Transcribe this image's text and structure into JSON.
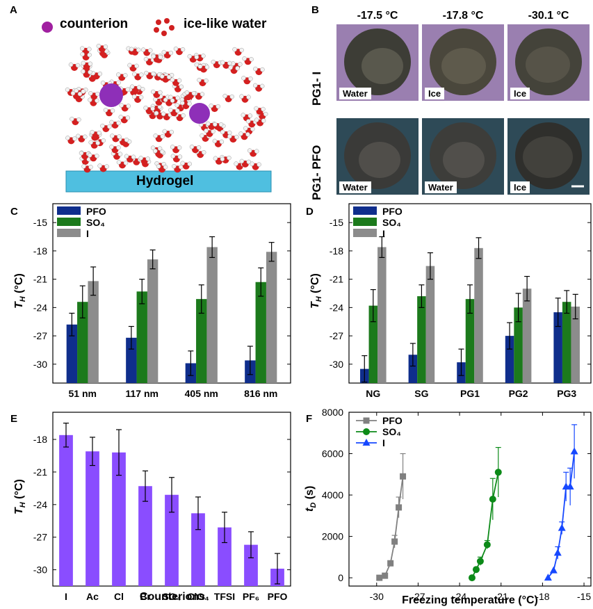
{
  "panel_a": {
    "letter": "A",
    "legend_counterion": "counterion",
    "legend_water": "ice-like water",
    "substrate_label": "Hydrogel"
  },
  "panel_b": {
    "letter": "B",
    "temperatures": [
      "-17.5 °C",
      "-17.8 °C",
      "-30.1 °C"
    ],
    "rows": [
      {
        "label": "PG1- I",
        "states": [
          "Water",
          "Ice",
          "Ice"
        ],
        "color": "#9a7fb0"
      },
      {
        "label": "PG1- PFO",
        "states": [
          "Water",
          "Water",
          "Ice"
        ],
        "color": "#2e4a57"
      }
    ]
  },
  "chart_data": [
    {
      "panel": "C",
      "type": "bar",
      "categories": [
        "51 nm",
        "117 nm",
        "405 nm",
        "816 nm"
      ],
      "ylabel": "T_H (°C)",
      "ylim": [
        -32,
        -13
      ],
      "yticks": [
        -30,
        -27,
        -24,
        -21,
        -18,
        -15
      ],
      "series": [
        {
          "name": "PFO",
          "color": "#0f2e8c",
          "values": [
            -25.8,
            -27.2,
            -29.9,
            -29.6
          ],
          "errors": [
            1.2,
            1.2,
            1.3,
            1.5
          ]
        },
        {
          "name": "SO₄",
          "color": "#1c7a1c",
          "values": [
            -23.4,
            -22.3,
            -23.1,
            -21.3
          ],
          "errors": [
            1.7,
            1.3,
            1.5,
            1.5
          ]
        },
        {
          "name": "I",
          "color": "#8c8c8c",
          "values": [
            -21.2,
            -18.9,
            -17.6,
            -18.1
          ],
          "errors": [
            1.5,
            1.0,
            1.1,
            1.0
          ]
        }
      ]
    },
    {
      "panel": "D",
      "type": "bar",
      "categories": [
        "NG",
        "SG",
        "PG1",
        "PG2",
        "PG3"
      ],
      "ylabel": "T_H (°C)",
      "ylim": [
        -32,
        -13
      ],
      "yticks": [
        -30,
        -27,
        -24,
        -21,
        -18,
        -15
      ],
      "series": [
        {
          "name": "PFO",
          "color": "#0f2e8c",
          "values": [
            -30.5,
            -29.0,
            -29.8,
            -27.0,
            -24.5
          ],
          "errors": [
            1.4,
            1.2,
            1.4,
            1.4,
            1.5
          ]
        },
        {
          "name": "SO₄",
          "color": "#1c7a1c",
          "values": [
            -23.8,
            -22.8,
            -23.1,
            -24.0,
            -23.4
          ],
          "errors": [
            1.7,
            1.2,
            1.5,
            1.5,
            1.2
          ]
        },
        {
          "name": "I",
          "color": "#8c8c8c",
          "values": [
            -17.6,
            -19.6,
            -17.7,
            -22.0,
            -23.9
          ],
          "errors": [
            1.1,
            1.4,
            1.1,
            1.3,
            1.3
          ]
        }
      ]
    },
    {
      "panel": "E",
      "type": "bar",
      "categories": [
        "I",
        "Ac",
        "Cl",
        "Br",
        "SO₄",
        "ClO₄",
        "TFSI",
        "PF₆",
        "PFO"
      ],
      "xlabel": "Counterions",
      "ylabel": "T_H (°C)",
      "ylim": [
        -31.5,
        -15.5
      ],
      "yticks": [
        -30,
        -27,
        -24,
        -21,
        -18
      ],
      "series": [
        {
          "name": "",
          "color": "#8a4dff",
          "values": [
            -17.6,
            -19.1,
            -19.2,
            -22.3,
            -23.1,
            -24.8,
            -26.1,
            -27.7,
            -29.9
          ],
          "errors": [
            1.1,
            1.3,
            2.1,
            1.4,
            1.6,
            1.5,
            1.4,
            1.2,
            1.4
          ]
        }
      ]
    },
    {
      "panel": "F",
      "type": "scatter",
      "xlabel": "Freezing temperature (°C)",
      "ylabel": "t_D (s)",
      "xlim": [
        -32,
        -14.5
      ],
      "ylim": [
        -400,
        8000
      ],
      "xticks": [
        -30,
        -27,
        -24,
        -21,
        -18,
        -15
      ],
      "yticks": [
        0,
        2000,
        4000,
        6000,
        8000
      ],
      "series": [
        {
          "name": "PFO",
          "color": "#808080",
          "marker": "square",
          "x": [
            -29.8,
            -29.4,
            -29.0,
            -28.7,
            -28.4,
            -28.1
          ],
          "y": [
            0,
            100,
            700,
            1750,
            3400,
            4900
          ],
          "errors": [
            0,
            0,
            0,
            300,
            500,
            1100
          ]
        },
        {
          "name": "SO₄",
          "color": "#0c8a18",
          "marker": "circle",
          "x": [
            -23.1,
            -22.8,
            -22.5,
            -22.0,
            -21.6,
            -21.2
          ],
          "y": [
            0,
            400,
            800,
            1600,
            3800,
            5100
          ],
          "errors": [
            0,
            0,
            200,
            200,
            1000,
            1200
          ]
        },
        {
          "name": "I",
          "color": "#1648ff",
          "marker": "triangle",
          "x": [
            -17.6,
            -17.2,
            -16.9,
            -16.6,
            -16.3,
            -16.0,
            -15.7
          ],
          "y": [
            0,
            350,
            1200,
            2400,
            4400,
            4400,
            6100
          ],
          "errors": [
            0,
            0,
            300,
            300,
            700,
            900,
            1300
          ]
        }
      ]
    }
  ]
}
